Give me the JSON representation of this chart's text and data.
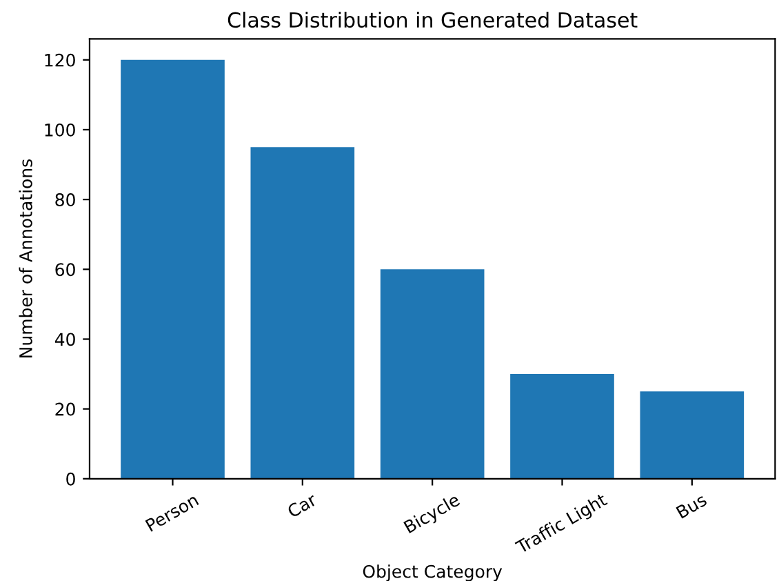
{
  "chart_data": {
    "type": "bar",
    "title": "Class Distribution in Generated Dataset",
    "xlabel": "Object Category",
    "ylabel": "Number of Annotations",
    "categories": [
      "Person",
      "Car",
      "Bicycle",
      "Traffic Light",
      "Bus"
    ],
    "values": [
      120,
      95,
      60,
      30,
      25
    ],
    "color": "#1f77b4",
    "ylim": [
      0,
      126
    ],
    "yticks": [
      0,
      20,
      40,
      60,
      80,
      100,
      120
    ],
    "grid": false,
    "legend": false
  }
}
